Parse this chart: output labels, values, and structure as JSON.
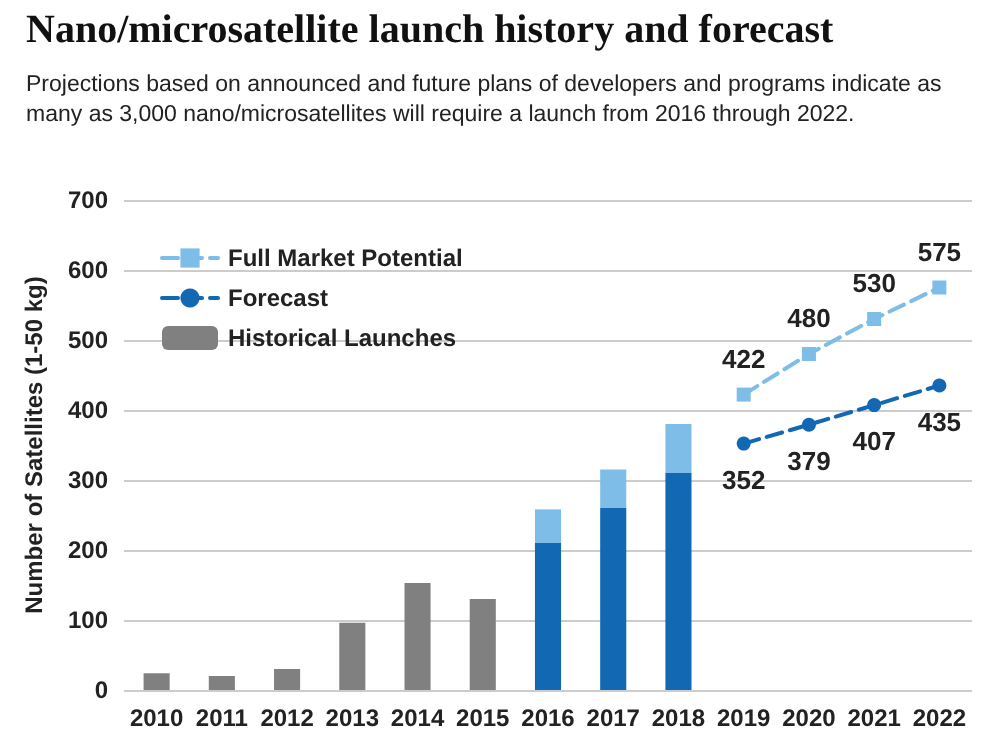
{
  "chart_data": {
    "type": "bar",
    "title": "Nano/microsatellite launch history and forecast",
    "subtitle": "Projections based on announced and future plans of developers and programs indicate as\nmany as 3,000 nano/microsatellites will require a launch from 2016 through 2022.",
    "ylabel": "Number of Satellites (1-50 kg)",
    "categories": [
      "2010",
      "2011",
      "2012",
      "2013",
      "2014",
      "2015",
      "2016",
      "2017",
      "2018",
      "2019",
      "2020",
      "2021",
      "2022"
    ],
    "stacked": true,
    "series": [
      {
        "name": "Full Market Potential",
        "type": "line",
        "color": "#7dbde8",
        "marker": "square",
        "line_style": "dashed",
        "values": [
          null,
          null,
          null,
          null,
          null,
          null,
          null,
          null,
          null,
          422,
          480,
          530,
          575
        ],
        "value_labels": [
          null,
          null,
          null,
          null,
          null,
          null,
          null,
          null,
          null,
          "422",
          "480",
          "530",
          "575"
        ]
      },
      {
        "name": "Forecast",
        "type": "line",
        "color": "#1268b3",
        "marker": "circle",
        "line_style": "dashed",
        "values": [
          null,
          null,
          null,
          null,
          null,
          null,
          null,
          null,
          null,
          352,
          379,
          407,
          435
        ],
        "value_labels": [
          null,
          null,
          null,
          null,
          null,
          null,
          null,
          null,
          null,
          "352",
          "379",
          "407",
          "435"
        ]
      },
      {
        "name": "Historical Launches",
        "color": "#808080",
        "values": [
          24,
          20,
          30,
          96,
          153,
          130,
          null,
          null,
          null,
          null,
          null,
          null,
          null
        ]
      },
      {
        "color": "#1268b3",
        "values": [
          null,
          null,
          null,
          null,
          null,
          null,
          210,
          260,
          310,
          null,
          null,
          null,
          null
        ]
      },
      {
        "color": "#7dbde8",
        "values": [
          null,
          null,
          null,
          null,
          null,
          null,
          48,
          55,
          70,
          null,
          null,
          null,
          null
        ]
      }
    ],
    "ylim": [
      0,
      700
    ],
    "yticks": [
      0,
      100,
      200,
      300,
      400,
      500,
      600,
      700
    ],
    "grid": "y",
    "legend": "top left"
  }
}
